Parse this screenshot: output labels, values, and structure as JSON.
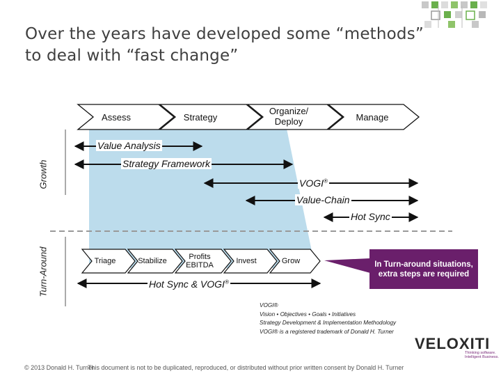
{
  "title": {
    "line1": "Over the years have developed some “methods”",
    "line2": "to deal with “fast change”"
  },
  "phases": [
    "Assess",
    "Strategy",
    "Organize/",
    "Deploy",
    "Manage"
  ],
  "side_labels": {
    "growth": "Growth",
    "turnaround": "Turn-Around"
  },
  "arrow_labels": {
    "value_analysis": "Value Analysis",
    "strategy_framework": "Strategy Framework",
    "vogi": "VOGI",
    "vogi_sup": "®",
    "value_chain": "Value-Chain",
    "hot_sync": "Hot Sync",
    "hot_sync_vogi": "Hot Sync & VOGI",
    "hot_sync_vogi_sup": "®"
  },
  "turnaround_steps": [
    "Triage",
    "Stabilize",
    "Profits",
    "EBITDA",
    "Invest",
    "Grow"
  ],
  "callout": "In Turn-around situations, extra steps are required",
  "footnote": {
    "line1": "VOGI®",
    "line2": "Vision • Objectives • Goals • Initiatives",
    "line3": "Strategy Development & Implementation Methodology",
    "line4": "VOGI® is a registered trademark of Donald H. Turner"
  },
  "logo": {
    "name": "VELOXITI",
    "tagline1": "Thinking software.",
    "tagline2": "Intelligent Business."
  },
  "footer": {
    "left": "© 2013 Donald H. Turner",
    "right": "This document is not to be duplicated, reproduced, or distributed without prior written consent by Donald H. Turner"
  },
  "colors": {
    "funnel": "#bcdcec",
    "callout": "#6a1f6b",
    "decor_green": "#6ab04c",
    "decor_gray": "#b8b8b8"
  }
}
